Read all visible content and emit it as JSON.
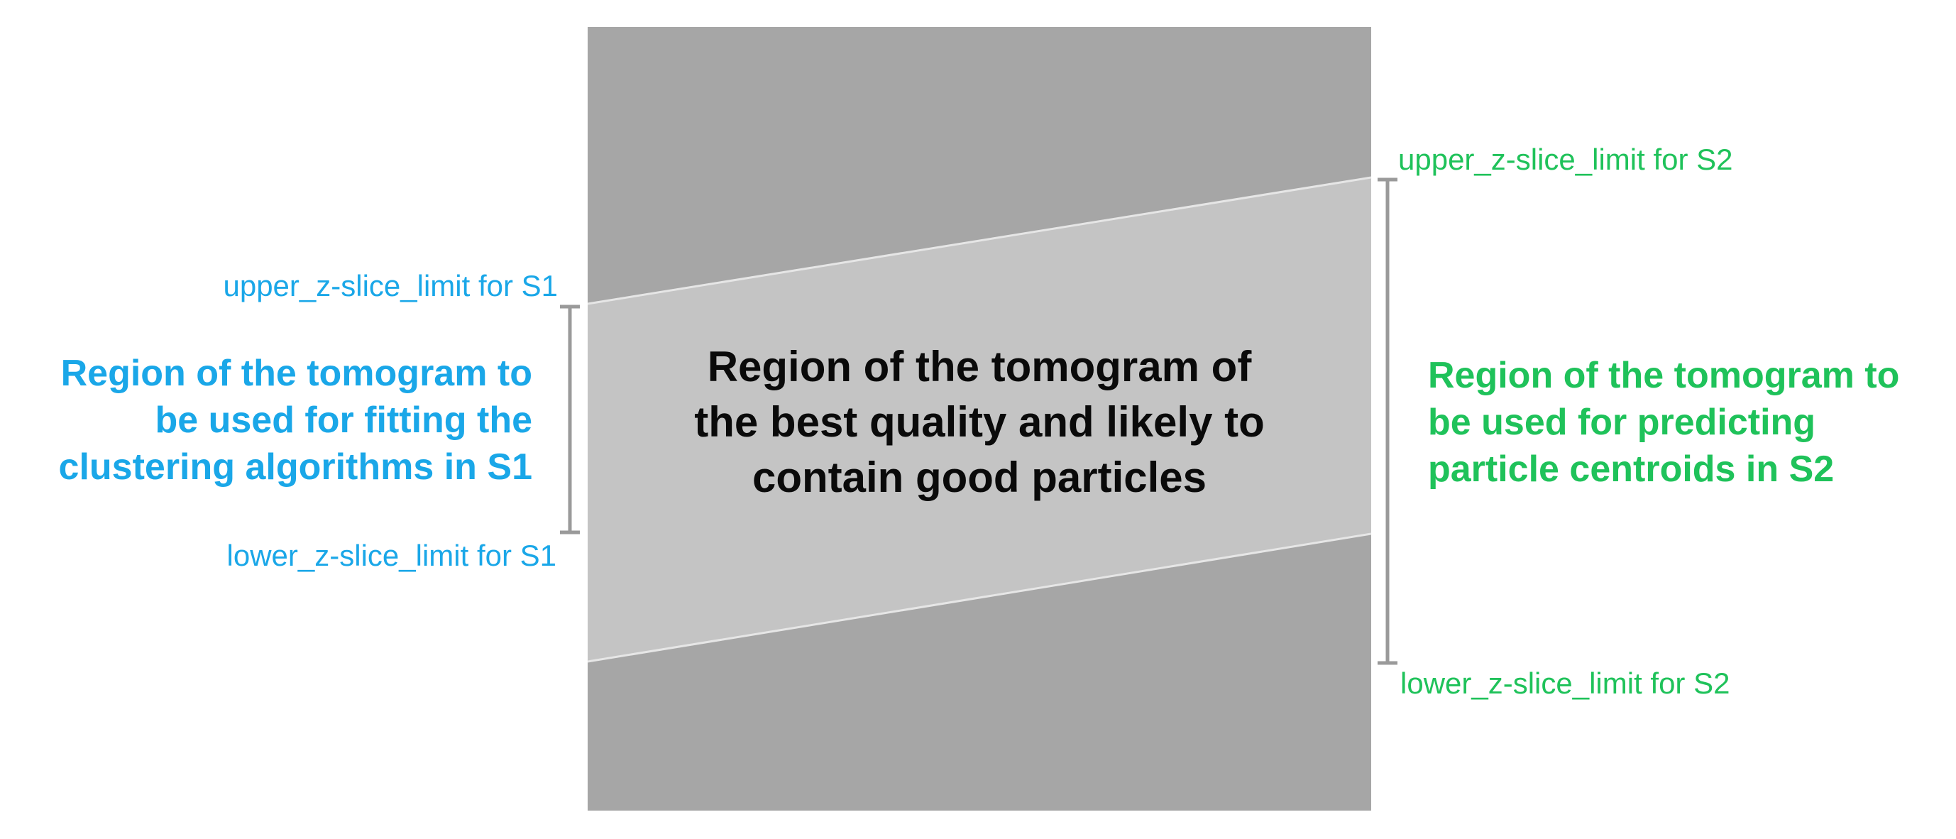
{
  "colors": {
    "dark_region": "#a6a6a6",
    "light_region": "#c4c4c4",
    "boundary_line": "#e6e6e6",
    "bracket": "#9a9a9a",
    "s1_text": "#1aa7e8",
    "s2_text": "#1fc25a",
    "center_text": "#0a0a0a"
  },
  "center_region": {
    "label": "Region of the tomogram of\nthe best quality and likely to\ncontain good particles"
  },
  "s1": {
    "upper_limit_label": "upper_z-slice_limit for S1",
    "lower_limit_label": "lower_z-slice_limit for S1",
    "region_label": "Region of the tomogram to\nbe used for fitting the\nclustering algorithms in S1"
  },
  "s2": {
    "upper_limit_label": "upper_z-slice_limit for S2",
    "lower_limit_label": "lower_z-slice_limit for S2",
    "region_label": "Region of the tomogram to\nbe used for predicting\nparticle centroids in S2"
  }
}
